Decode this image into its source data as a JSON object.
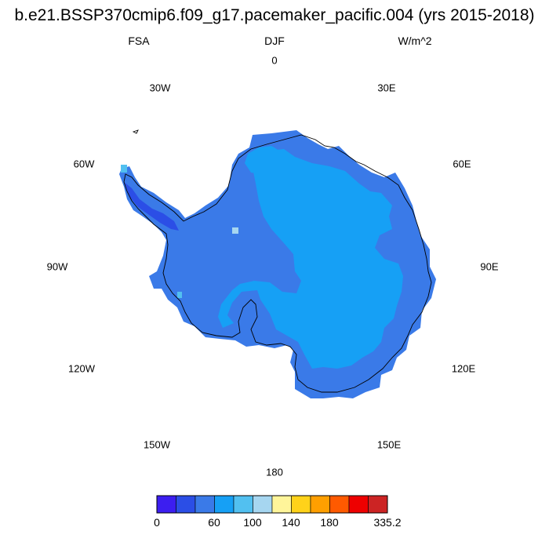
{
  "header": {
    "title": "b.e21.BSSP370cmip6.f09_g17.pacemaker_pacific.004 (yrs 2015-2018)",
    "field": "FSA",
    "season": "DJF",
    "units": "W/m^2"
  },
  "longitude_labels": [
    "0",
    "30E",
    "60E",
    "90E",
    "120E",
    "150E",
    "180",
    "150W",
    "120W",
    "90W",
    "60W",
    "30W"
  ],
  "colorbar": {
    "colors": [
      "#3c1ef0",
      "#2b4ee6",
      "#3a7ae8",
      "#16a0f5",
      "#52c0f0",
      "#a6d6f0",
      "#fff59a",
      "#ffd21a",
      "#ff9f00",
      "#ff5a00",
      "#ee0000",
      "#cc2424"
    ],
    "tick_labels": [
      "0",
      "60",
      "100",
      "140",
      "180",
      "335.2"
    ]
  },
  "legend_colors": {
    "outline": "#000000",
    "east_antarctica": "#16a0f5",
    "west_antarctica": "#3a7ae8",
    "peninsula_low": "#2b4ee6"
  }
}
